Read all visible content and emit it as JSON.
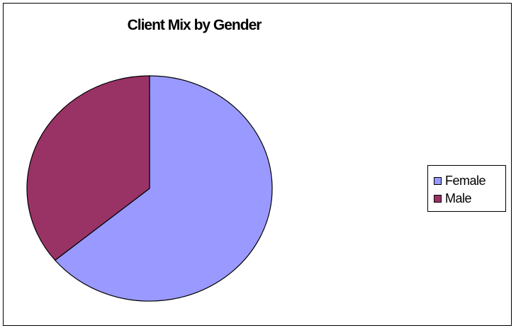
{
  "chart_data": {
    "type": "pie",
    "title": "Client Mix by Gender",
    "categories": [
      "Female",
      "Male"
    ],
    "values": [
      64,
      36
    ],
    "colors": [
      "#9999ff",
      "#993366"
    ],
    "legend": "right"
  }
}
